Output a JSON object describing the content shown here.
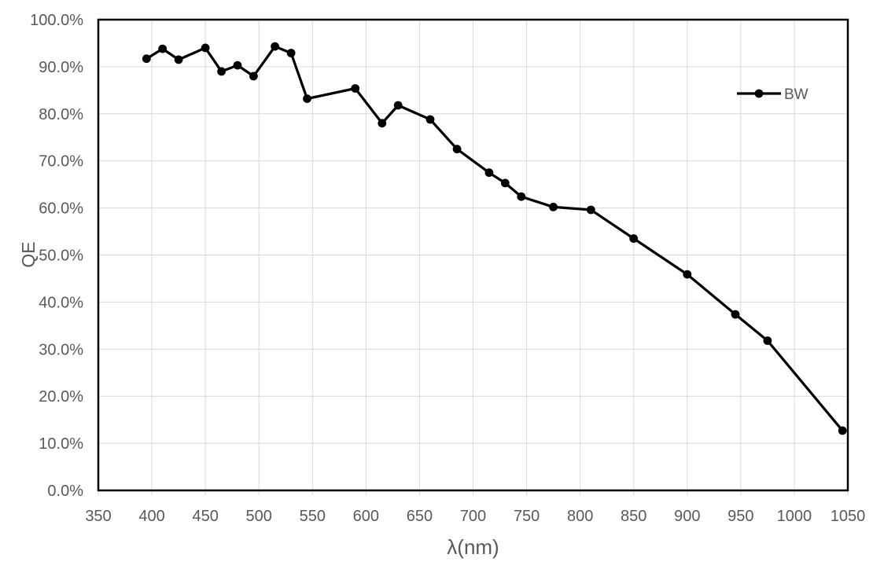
{
  "chart_data": {
    "type": "line",
    "title": "",
    "xlabel": "λ(nm)",
    "ylabel": "QE",
    "x": [
      395,
      410,
      425,
      450,
      465,
      480,
      495,
      515,
      530,
      545,
      590,
      615,
      630,
      660,
      685,
      715,
      730,
      745,
      775,
      810,
      850,
      900,
      945,
      975,
      1045
    ],
    "series": [
      {
        "name": "BW",
        "color": "#000000",
        "marker": "circle",
        "values": [
          91.7,
          93.8,
          91.5,
          94.0,
          89.0,
          90.3,
          88.0,
          94.3,
          92.9,
          83.2,
          85.4,
          78.0,
          81.8,
          78.8,
          72.5,
          67.5,
          65.3,
          62.4,
          60.2,
          59.6,
          53.5,
          45.9,
          37.4,
          31.8,
          12.7
        ]
      }
    ],
    "xlim": [
      350,
      1050
    ],
    "ylim": [
      0,
      100
    ],
    "x_tick_values": [
      350,
      400,
      450,
      500,
      550,
      600,
      650,
      700,
      750,
      800,
      850,
      900,
      950,
      1000,
      1050
    ],
    "x_tick_labels": [
      "350",
      "400",
      "450",
      "500",
      "550",
      "600",
      "650",
      "700",
      "750",
      "800",
      "850",
      "900",
      "950",
      "1000",
      "1050"
    ],
    "y_tick_values": [
      0,
      10,
      20,
      30,
      40,
      50,
      60,
      70,
      80,
      90,
      100
    ],
    "y_tick_labels": [
      "0.0%",
      "10.0%",
      "20.0%",
      "30.0%",
      "40.0%",
      "50.0%",
      "60.0%",
      "70.0%",
      "80.0%",
      "90.0%",
      "100.0%"
    ],
    "grid": true,
    "legend_position": "top-right-inside"
  },
  "colors": {
    "background": "#ffffff",
    "axis_text": "#595959",
    "gridline": "#d9d9d9",
    "tick_mark": "#d9d9d9",
    "plot_border": "#000000",
    "series": "#000000"
  }
}
